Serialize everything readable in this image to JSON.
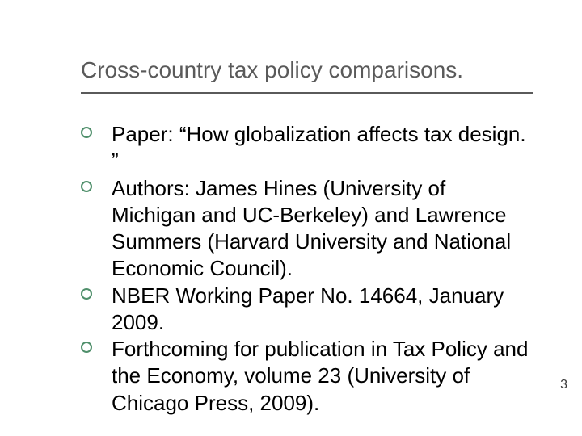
{
  "slide": {
    "title": "Cross-country tax policy comparisons.",
    "title_color": "#5a5a5a",
    "title_fontsize": 28,
    "rule_color": "#5a5a5a",
    "bullets": [
      "Paper: “How globalization affects tax design. ”",
      "Authors: James Hines (University of Michigan and UC-Berkeley) and Lawrence Summers (Harvard University and National Economic Council).",
      "NBER Working Paper No. 14664, January 2009.",
      "Forthcoming for publication in Tax Policy and the Economy, volume 23 (University of Chicago Press, 2009)."
    ],
    "bullet_marker_color": "#4f8f6b",
    "body_fontsize": 26,
    "body_color": "#000000",
    "page_number": "3",
    "background_color": "#ffffff"
  }
}
